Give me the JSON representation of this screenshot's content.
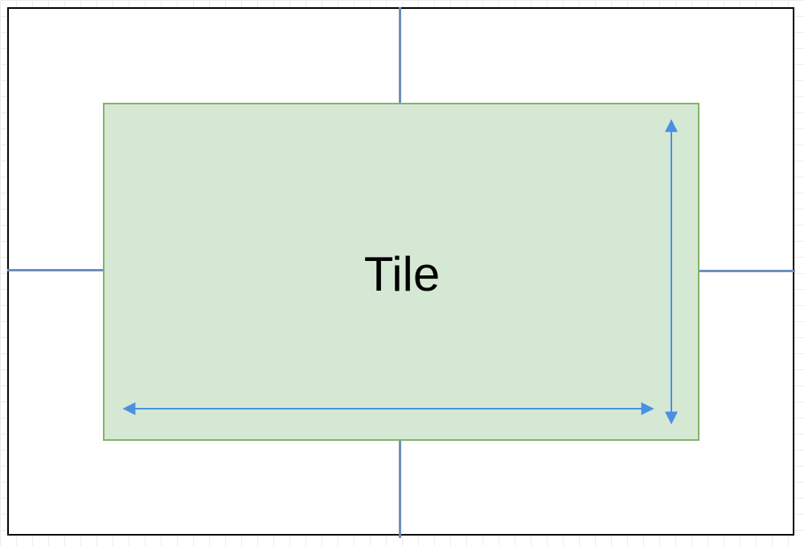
{
  "diagram": {
    "tile_label": "Tile",
    "colors": {
      "tile_fill": "#d5e8d4",
      "tile_border": "#82b366",
      "connector": "#6c8ebf",
      "arrow": "#4a90e2",
      "frame": "#000000"
    }
  }
}
